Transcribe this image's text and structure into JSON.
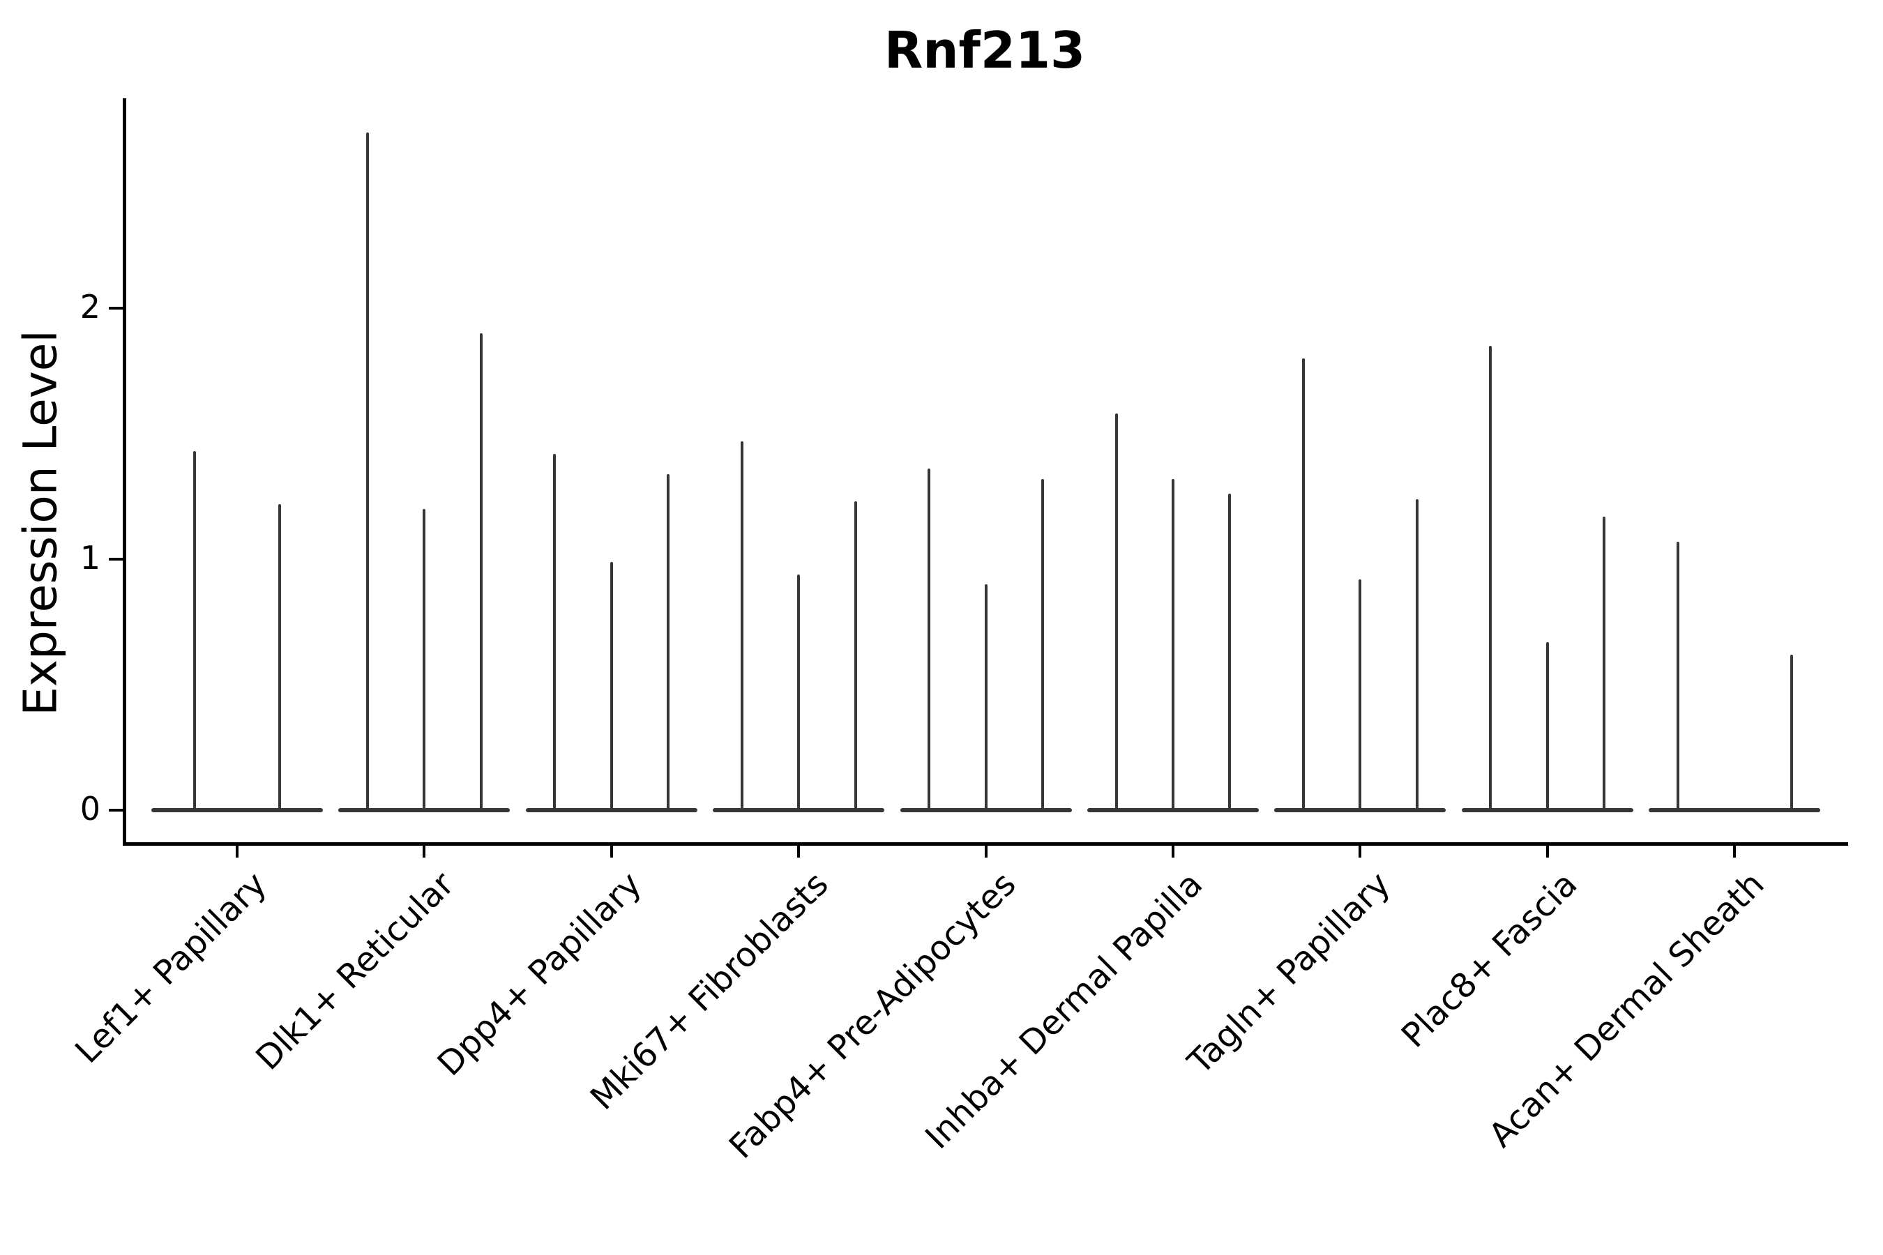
{
  "title": "Rnf213",
  "chart_data": {
    "type": "violin",
    "title": "Rnf213",
    "xlabel": "",
    "ylabel": "Expression Level",
    "ylim": [
      -0.13,
      2.84
    ],
    "yticks": [
      "0",
      "1",
      "2"
    ],
    "grid": false,
    "legend": false,
    "line_color": "#343638",
    "axis_color": "#000000",
    "background_color": "#ffffff",
    "description": "Single-gene violin plot of Rnf213 expression; each cell-type category contains thin degenerate violins (flat baseline at 0 with a thin density spike up to the max expression value).",
    "categories": [
      "Lef1+ Papillary",
      "Dlk1+ Reticular",
      "Dpp4+ Papillary",
      "Mki67+ Fibroblasts",
      "Fabp4+ Pre-Adipocytes",
      "Inhba+ Dermal Papilla",
      "Tagln+ Papillary",
      "Plac8+ Fascia",
      "Acan+ Dermal Sheath"
    ],
    "violins": [
      {
        "category": "Lef1+ Papillary",
        "maxima": [
          1.43,
          1.22
        ]
      },
      {
        "category": "Dlk1+ Reticular",
        "maxima": [
          2.7,
          1.2,
          1.9
        ]
      },
      {
        "category": "Dpp4+ Papillary",
        "maxima": [
          1.42,
          0.99,
          1.34
        ]
      },
      {
        "category": "Mki67+ Fibroblasts",
        "maxima": [
          1.47,
          0.94,
          1.23
        ]
      },
      {
        "category": "Fabp4+ Pre-Adipocytes",
        "maxima": [
          1.36,
          0.9,
          1.32
        ]
      },
      {
        "category": "Inhba+ Dermal Papilla",
        "maxima": [
          1.58,
          1.32,
          1.26
        ]
      },
      {
        "category": "Tagln+ Papillary",
        "maxima": [
          1.8,
          0.92,
          1.24
        ]
      },
      {
        "category": "Plac8+ Fascia",
        "maxima": [
          1.85,
          0.67,
          1.17
        ]
      },
      {
        "category": "Acan+ Dermal Sheath",
        "maxima": [
          1.07,
          0.0,
          0.62
        ]
      }
    ]
  }
}
